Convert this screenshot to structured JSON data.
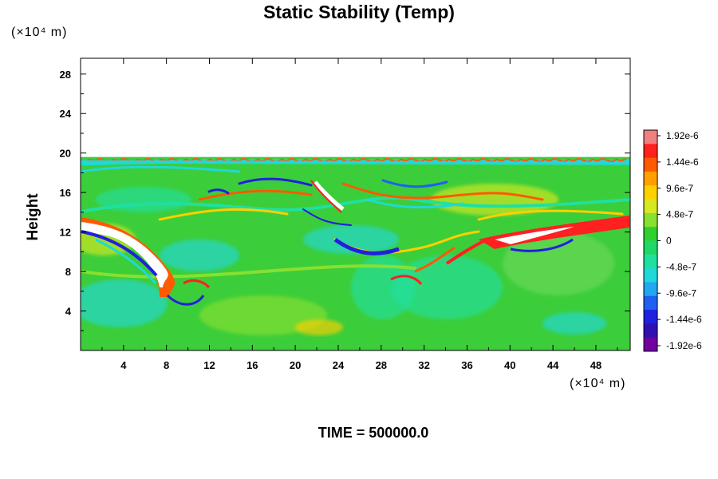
{
  "chart_data": {
    "type": "heatmap",
    "title": "Static Stability (Temp)",
    "xlabel": "",
    "ylabel": "Height",
    "x_unit": "(×10⁴ m)",
    "y_unit": "(×10⁴ m)",
    "footer": "TIME = 500000.0",
    "xlim": [
      0,
      51.2
    ],
    "ylim": [
      0,
      29.6
    ],
    "x_ticks": [
      "4",
      "8",
      "12",
      "16",
      "20",
      "24",
      "28",
      "32",
      "36",
      "40",
      "44",
      "48"
    ],
    "y_ticks": [
      "4",
      "8",
      "12",
      "16",
      "20",
      "24",
      "28"
    ],
    "field_top": 19.6,
    "colorbar": {
      "labels": [
        "1.92e-6",
        "1.44e-6",
        "9.6e-7",
        "4.8e-7",
        "0",
        "-4.8e-7",
        "-9.6e-7",
        "-1.44e-6",
        "-1.92e-6"
      ],
      "colors": [
        "#f08080",
        "#ff2020",
        "#ff5a00",
        "#ffa000",
        "#ffd000",
        "#d8e820",
        "#88e030",
        "#30d030",
        "#20d868",
        "#20e0a0",
        "#20d8d8",
        "#20a8f0",
        "#2060f0",
        "#2020e0",
        "#3010b0",
        "#7000a0"
      ]
    },
    "features": [
      {
        "kind": "band",
        "value": "1.92e-6",
        "x": [
          0,
          14
        ],
        "y": [
          13.5,
          8.5
        ],
        "note": "descending positive streak from left boundary"
      },
      {
        "kind": "band",
        "value": "1.92e-6",
        "x": [
          37,
          51.2
        ],
        "y": [
          12,
          13.2
        ],
        "note": "positive streak from right boundary"
      },
      {
        "kind": "band",
        "value": "-1.44e-6",
        "x": [
          22,
          28
        ],
        "y": [
          11,
          11
        ],
        "note": "negative arc in centre"
      }
    ]
  }
}
